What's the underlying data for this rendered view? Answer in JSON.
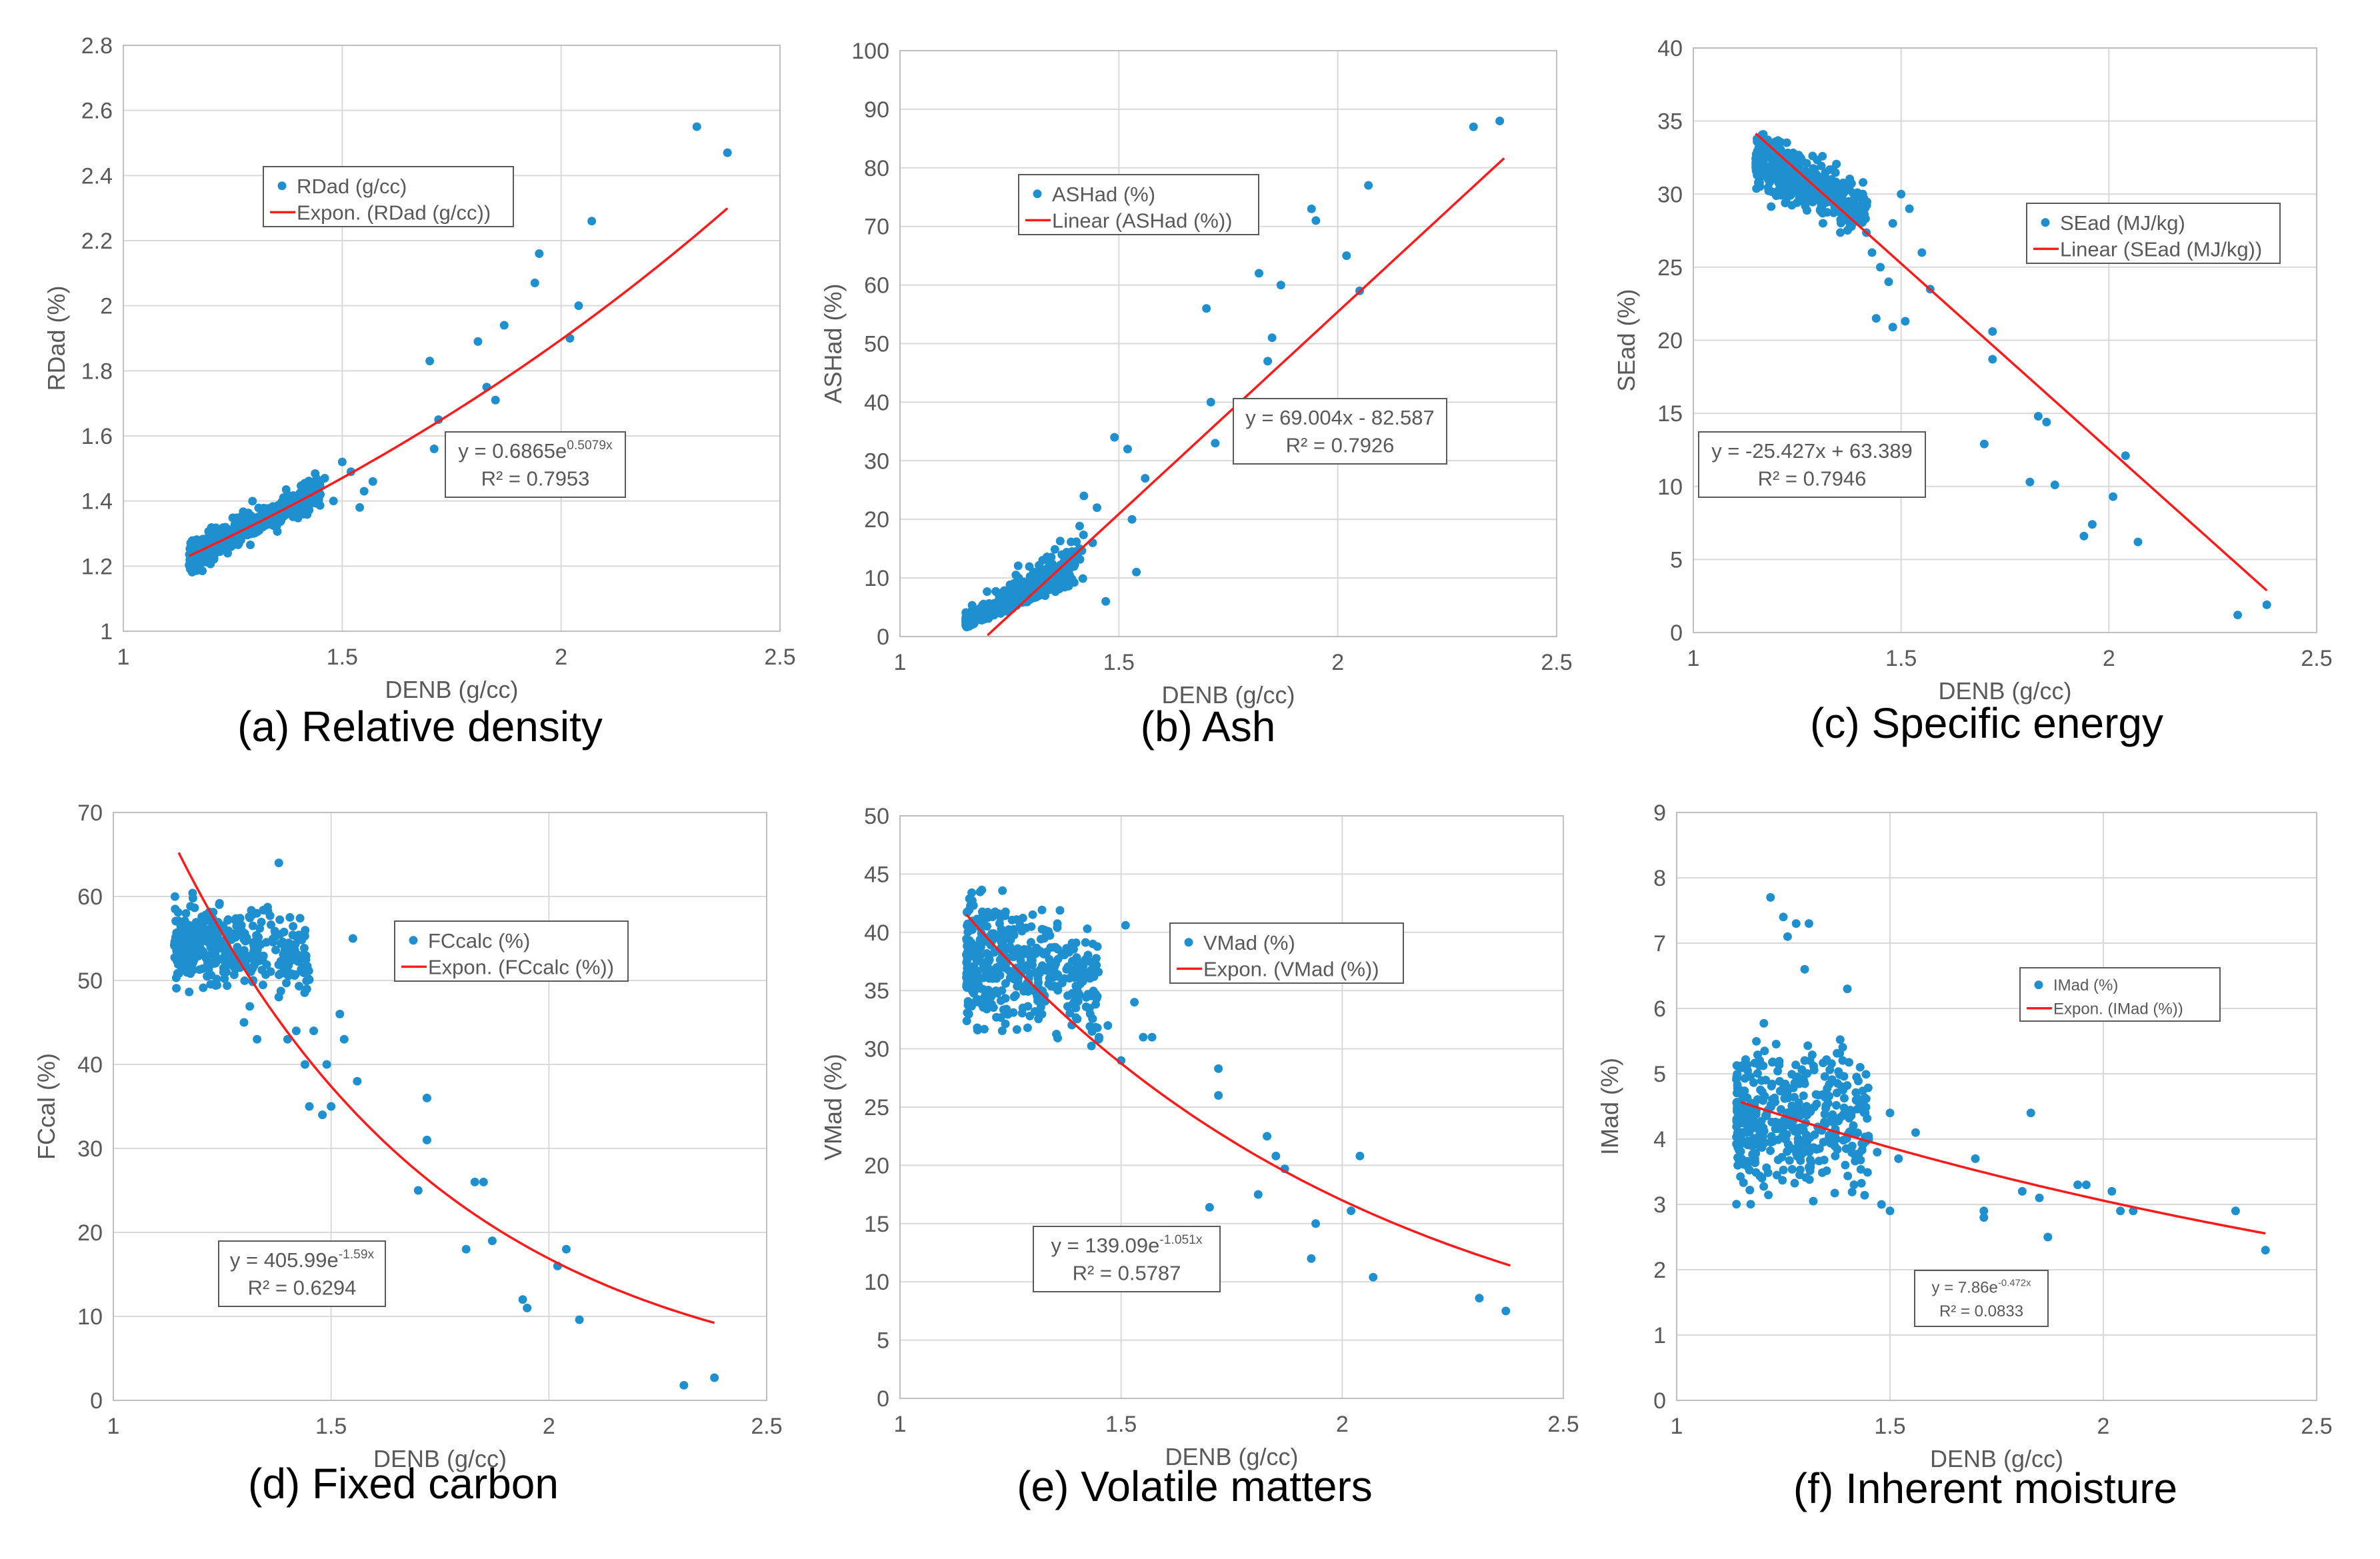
{
  "colors": {
    "points": "#1e90d0",
    "trend": "#ff1a1a",
    "grid": "#d9d9d9",
    "axis": "#bfbfbf",
    "text": "#595959",
    "caption": "#000000",
    "box_border": "#595959"
  },
  "chart_data": [
    {
      "id": "a",
      "type": "scatter",
      "caption": "(a) Relative density",
      "xlabel": "DENB (g/cc)",
      "ylabel": "RDad (%)",
      "xlim": [
        1,
        2.5
      ],
      "ylim": [
        1,
        2.8
      ],
      "xticks": [
        1,
        1.5,
        2,
        2.5
      ],
      "xtick_labels": [
        "1",
        "1.5",
        "2",
        "2.5"
      ],
      "yticks": [
        1,
        1.2,
        1.4,
        1.6,
        1.8,
        2,
        2.2,
        2.4,
        2.6,
        2.8
      ],
      "ytick_labels": [
        "1",
        "1.2",
        "1.4",
        "1.6",
        "1.8",
        "2",
        "2.2",
        "2.4",
        "2.6",
        "2.8"
      ],
      "grid": true,
      "legend": {
        "position": "upper-left",
        "series_label": "RDad (g/cc)",
        "trend_label": "Expon. (RDad (g/cc))"
      },
      "equation": {
        "position": "lower-right",
        "main": "y = 0.6865e",
        "sup": "0.5079x",
        "r2": "R² = 0.7953"
      },
      "trendline": {
        "kind": "exponential",
        "a": 0.6865,
        "b": 0.5079,
        "x_range": [
          1.15,
          2.38
        ]
      },
      "cluster": {
        "n": 420,
        "x_range": [
          1.15,
          1.45
        ],
        "model": "exp",
        "a": 0.6865,
        "b": 0.5079,
        "spread": 0.035,
        "seed": 11
      },
      "points": [
        [
          1.45,
          1.42
        ],
        [
          1.48,
          1.4
        ],
        [
          1.5,
          1.52
        ],
        [
          1.52,
          1.49
        ],
        [
          1.55,
          1.43
        ],
        [
          1.57,
          1.46
        ],
        [
          1.54,
          1.38
        ],
        [
          1.46,
          1.47
        ],
        [
          1.7,
          1.83
        ],
        [
          1.71,
          1.56
        ],
        [
          1.72,
          1.65
        ],
        [
          1.81,
          1.89
        ],
        [
          1.83,
          1.75
        ],
        [
          1.85,
          1.71
        ],
        [
          1.87,
          1.94
        ],
        [
          1.94,
          2.07
        ],
        [
          1.95,
          2.16
        ],
        [
          2.02,
          1.9
        ],
        [
          2.04,
          2.0
        ],
        [
          2.07,
          2.26
        ],
        [
          2.31,
          2.55
        ],
        [
          2.38,
          2.47
        ]
      ]
    },
    {
      "id": "b",
      "type": "scatter",
      "caption": "(b) Ash",
      "xlabel": "DENB (g/cc)",
      "ylabel": "ASHad (%)",
      "xlim": [
        1,
        2.5
      ],
      "ylim": [
        0,
        100
      ],
      "xticks": [
        1,
        1.5,
        2,
        2.5
      ],
      "xtick_labels": [
        "1",
        "1.5",
        "2",
        "2.5"
      ],
      "yticks": [
        0,
        10,
        20,
        30,
        40,
        50,
        60,
        70,
        80,
        90,
        100
      ],
      "ytick_labels": [
        "0",
        "10",
        "20",
        "30",
        "40",
        "50",
        "60",
        "70",
        "80",
        "90",
        "100"
      ],
      "grid": true,
      "legend": {
        "position": "upper-center",
        "series_label": "ASHad (%)",
        "trend_label": "Linear (ASHad (%))"
      },
      "equation": {
        "position": "right",
        "main": "y = 69.004x - 82.587",
        "sup": "",
        "r2": "R² = 0.7926"
      },
      "trendline": {
        "kind": "linear",
        "a": 69.004,
        "b": -82.587,
        "x_range": [
          1.2,
          2.38
        ]
      },
      "cluster": {
        "n": 420,
        "x_range": [
          1.15,
          1.42
        ],
        "model": "ash",
        "a": 0,
        "b": 0,
        "spread": 5,
        "seed": 23
      },
      "points": [
        [
          1.42,
          24
        ],
        [
          1.45,
          22
        ],
        [
          1.47,
          6
        ],
        [
          1.49,
          34
        ],
        [
          1.52,
          32
        ],
        [
          1.53,
          20
        ],
        [
          1.54,
          11
        ],
        [
          1.56,
          27
        ],
        [
          1.44,
          16
        ],
        [
          1.41,
          15
        ],
        [
          1.7,
          56
        ],
        [
          1.71,
          40
        ],
        [
          1.72,
          33
        ],
        [
          1.82,
          62
        ],
        [
          1.84,
          47
        ],
        [
          1.85,
          51
        ],
        [
          1.87,
          60
        ],
        [
          1.94,
          73
        ],
        [
          1.95,
          71
        ],
        [
          2.02,
          65
        ],
        [
          2.05,
          59
        ],
        [
          2.07,
          77
        ],
        [
          2.31,
          87
        ],
        [
          2.37,
          88
        ]
      ]
    },
    {
      "id": "c",
      "type": "scatter",
      "caption": "(c) Specific energy",
      "xlabel": "DENB (g/cc)",
      "ylabel": "SEad (%)",
      "xlim": [
        1,
        2.5
      ],
      "ylim": [
        0,
        40
      ],
      "xticks": [
        1,
        1.5,
        2,
        2.5
      ],
      "xtick_labels": [
        "1",
        "1.5",
        "2",
        "2.5"
      ],
      "yticks": [
        0,
        5,
        10,
        15,
        20,
        25,
        30,
        35,
        40
      ],
      "ytick_labels": [
        "0",
        "5",
        "10",
        "15",
        "20",
        "25",
        "30",
        "35",
        "40"
      ],
      "grid": true,
      "legend": {
        "position": "right",
        "series_label": "SEad (MJ/kg)",
        "trend_label": "Linear (SEad (MJ/kg))"
      },
      "equation": {
        "position": "left",
        "main": "y = -25.427x + 63.389",
        "sup": "",
        "r2": "R² = 0.7946"
      },
      "trendline": {
        "kind": "linear",
        "a": -25.427,
        "b": 63.389,
        "x_range": [
          1.15,
          2.38
        ]
      },
      "cluster": {
        "n": 420,
        "x_range": [
          1.15,
          1.42
        ],
        "model": "se",
        "a": 0,
        "b": 0,
        "spread": 1.3,
        "seed": 37
      },
      "points": [
        [
          1.43,
          26
        ],
        [
          1.45,
          25
        ],
        [
          1.47,
          24
        ],
        [
          1.48,
          28
        ],
        [
          1.5,
          30
        ],
        [
          1.52,
          29
        ],
        [
          1.55,
          26
        ],
        [
          1.57,
          23.5
        ],
        [
          1.44,
          21.5
        ],
        [
          1.48,
          20.9
        ],
        [
          1.51,
          21.3
        ],
        [
          1.7,
          12.9
        ],
        [
          1.72,
          20.6
        ],
        [
          1.72,
          18.7
        ],
        [
          1.81,
          10.3
        ],
        [
          1.83,
          14.8
        ],
        [
          1.85,
          14.4
        ],
        [
          1.87,
          10.1
        ],
        [
          1.94,
          6.6
        ],
        [
          1.96,
          7.4
        ],
        [
          2.01,
          9.3
        ],
        [
          2.04,
          12.1
        ],
        [
          2.07,
          6.2
        ],
        [
          2.31,
          1.2
        ],
        [
          2.38,
          1.9
        ]
      ]
    },
    {
      "id": "d",
      "type": "scatter",
      "caption": "(d) Fixed carbon",
      "xlabel": "DENB (g/cc)",
      "ylabel": "FCcal (%)",
      "xlim": [
        1,
        2.5
      ],
      "ylim": [
        0,
        70
      ],
      "xticks": [
        1,
        1.5,
        2,
        2.5
      ],
      "xtick_labels": [
        "1",
        "1.5",
        "2",
        "2.5"
      ],
      "yticks": [
        0,
        10,
        20,
        30,
        40,
        50,
        60,
        70
      ],
      "ytick_labels": [
        "0",
        "10",
        "20",
        "30",
        "40",
        "50",
        "60",
        "70"
      ],
      "grid": true,
      "legend": {
        "position": "upper-right",
        "series_label": "FCcalc (%)",
        "trend_label": "Expon. (FCcalc (%))"
      },
      "equation": {
        "position": "lower-left",
        "main": "y = 405.99e",
        "sup": "-1.59x",
        "r2": "R² = 0.6294"
      },
      "trendline": {
        "kind": "exponential",
        "a": 405.99,
        "b": -1.59,
        "x_range": [
          1.15,
          2.38
        ]
      },
      "cluster": {
        "n": 420,
        "x_range": [
          1.14,
          1.45
        ],
        "model": "fc",
        "a": 0,
        "b": 0,
        "spread": 3.2,
        "seed": 53
      },
      "points": [
        [
          1.3,
          45
        ],
        [
          1.33,
          43
        ],
        [
          1.38,
          64
        ],
        [
          1.4,
          43
        ],
        [
          1.42,
          44
        ],
        [
          1.44,
          40
        ],
        [
          1.46,
          44
        ],
        [
          1.45,
          35
        ],
        [
          1.48,
          34
        ],
        [
          1.49,
          40
        ],
        [
          1.5,
          35
        ],
        [
          1.52,
          46
        ],
        [
          1.53,
          43
        ],
        [
          1.55,
          55
        ],
        [
          1.56,
          38
        ],
        [
          1.7,
          25
        ],
        [
          1.72,
          36
        ],
        [
          1.72,
          31
        ],
        [
          1.81,
          18
        ],
        [
          1.83,
          26
        ],
        [
          1.85,
          26
        ],
        [
          1.87,
          19
        ],
        [
          1.94,
          12
        ],
        [
          1.95,
          11
        ],
        [
          2.02,
          16
        ],
        [
          2.04,
          18
        ],
        [
          2.07,
          9.6
        ],
        [
          2.31,
          1.8
        ],
        [
          2.38,
          2.7
        ]
      ]
    },
    {
      "id": "e",
      "type": "scatter",
      "caption": "(e) Volatile matters",
      "xlabel": "DENB (g/cc)",
      "ylabel": "VMad (%)",
      "xlim": [
        1,
        2.5
      ],
      "ylim": [
        0,
        50
      ],
      "xticks": [
        1,
        1.5,
        2,
        2.5
      ],
      "xtick_labels": [
        "1",
        "1.5",
        "2",
        "2.5"
      ],
      "yticks": [
        0,
        5,
        10,
        15,
        20,
        25,
        30,
        35,
        40,
        45,
        50
      ],
      "ytick_labels": [
        "0",
        "5",
        "10",
        "15",
        "20",
        "25",
        "30",
        "35",
        "40",
        "45",
        "50"
      ],
      "grid": true,
      "legend": {
        "position": "upper-right",
        "series_label": "VMad (%)",
        "trend_label": "Expon. (VMad (%))"
      },
      "equation": {
        "position": "lower-center",
        "main": "y = 139.09e",
        "sup": "-1.051x",
        "r2": "R² = 0.5787"
      },
      "trendline": {
        "kind": "exponential",
        "a": 139.09,
        "b": -1.051,
        "x_range": [
          1.15,
          2.38
        ]
      },
      "cluster": {
        "n": 420,
        "x_range": [
          1.15,
          1.45
        ],
        "model": "vm",
        "a": 0,
        "b": 0,
        "spread": 3.5,
        "seed": 71
      },
      "points": [
        [
          1.43,
          33
        ],
        [
          1.45,
          31
        ],
        [
          1.47,
          32
        ],
        [
          1.5,
          29
        ],
        [
          1.51,
          40.6
        ],
        [
          1.53,
          34
        ],
        [
          1.55,
          31
        ],
        [
          1.57,
          31
        ],
        [
          1.7,
          16.4
        ],
        [
          1.72,
          28.3
        ],
        [
          1.72,
          26
        ],
        [
          1.81,
          17.5
        ],
        [
          1.83,
          22.5
        ],
        [
          1.85,
          20.8
        ],
        [
          1.87,
          19.7
        ],
        [
          1.93,
          12
        ],
        [
          1.94,
          15
        ],
        [
          2.02,
          16.1
        ],
        [
          2.04,
          20.8
        ],
        [
          2.07,
          10.4
        ],
        [
          2.31,
          8.6
        ],
        [
          2.37,
          7.5
        ]
      ]
    },
    {
      "id": "f",
      "type": "scatter",
      "caption": "(f) Inherent moisture",
      "xlabel": "DENB (g/cc)",
      "ylabel": "IMad (%)",
      "xlim": [
        1,
        2.5
      ],
      "ylim": [
        0,
        9
      ],
      "xticks": [
        1,
        1.5,
        2,
        2.5
      ],
      "xtick_labels": [
        "1",
        "1.5",
        "2",
        "2.5"
      ],
      "yticks": [
        0,
        1,
        2,
        3,
        4,
        5,
        6,
        7,
        8,
        9
      ],
      "ytick_labels": [
        "0",
        "1",
        "2",
        "3",
        "4",
        "5",
        "6",
        "7",
        "8",
        "9"
      ],
      "grid": true,
      "legend": {
        "position": "upper-right",
        "series_label": "IMad (%)",
        "trend_label": "Expon. (IMad (%))"
      },
      "equation": {
        "position": "lower-center",
        "main": "y = 7.86e",
        "sup": "-0.472x",
        "r2": "R² = 0.0833"
      },
      "trendline": {
        "kind": "exponential",
        "a": 7.86,
        "b": -0.472,
        "x_range": [
          1.15,
          2.38
        ]
      },
      "cluster": {
        "n": 420,
        "x_range": [
          1.14,
          1.45
        ],
        "model": "im",
        "a": 0,
        "b": 0,
        "spread": 0.75,
        "seed": 89
      },
      "points": [
        [
          1.22,
          7.7
        ],
        [
          1.25,
          7.4
        ],
        [
          1.28,
          7.3
        ],
        [
          1.26,
          7.1
        ],
        [
          1.31,
          7.3
        ],
        [
          1.3,
          6.6
        ],
        [
          1.4,
          6.3
        ],
        [
          1.45,
          4.0
        ],
        [
          1.47,
          3.8
        ],
        [
          1.5,
          4.4
        ],
        [
          1.52,
          3.7
        ],
        [
          1.56,
          4.1
        ],
        [
          1.43,
          5.1
        ],
        [
          1.48,
          3.0
        ],
        [
          1.5,
          2.9
        ],
        [
          1.7,
          3.7
        ],
        [
          1.72,
          2.9
        ],
        [
          1.72,
          2.8
        ],
        [
          1.81,
          3.2
        ],
        [
          1.83,
          4.4
        ],
        [
          1.85,
          3.1
        ],
        [
          1.87,
          2.5
        ],
        [
          1.94,
          3.3
        ],
        [
          1.96,
          3.3
        ],
        [
          2.02,
          3.2
        ],
        [
          2.04,
          2.9
        ],
        [
          2.07,
          2.9
        ],
        [
          2.31,
          2.9
        ],
        [
          2.38,
          2.3
        ]
      ]
    }
  ]
}
